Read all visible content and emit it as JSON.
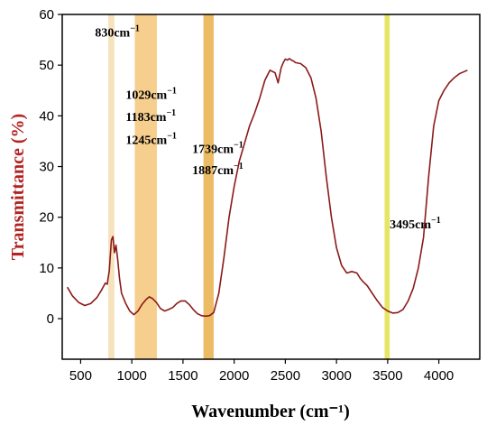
{
  "chart_data": {
    "type": "line",
    "xlabel": "Wavenumber (cm⁻¹)",
    "ylabel": "Transmittance (%)",
    "xlim": [
      320,
      4400
    ],
    "ylim": [
      -8,
      60
    ],
    "xticks": [
      500,
      1000,
      1500,
      2000,
      2500,
      3000,
      3500,
      4000
    ],
    "yticks": [
      0,
      10,
      20,
      30,
      40,
      50,
      60
    ],
    "grid": false,
    "colors": {
      "line": "#8B1A1A",
      "ylabel": "#B22222",
      "xlabel": "#000000",
      "band_light": "#F5DEB3",
      "band_orange": "#F5C77A",
      "band_dark": "#E8B04A",
      "band_yellow": "#E3E04A"
    },
    "bands": [
      {
        "x0": 770,
        "x1": 830,
        "color": "#F5DEB3"
      },
      {
        "x0": 1029,
        "x1": 1245,
        "color": "#F5C77A"
      },
      {
        "x0": 1700,
        "x1": 1800,
        "color": "#E8B04A"
      },
      {
        "x0": 3470,
        "x1": 3520,
        "color": "#E3E04A"
      }
    ],
    "annotations": [
      {
        "base": "830cm",
        "sup": "−1",
        "x": 640,
        "y": 55.6
      },
      {
        "base": "1029cm",
        "sup": "−1",
        "x": 940,
        "y": 43.4
      },
      {
        "base": "1183cm",
        "sup": "−1",
        "x": 940,
        "y": 39.0
      },
      {
        "base": "1245cm",
        "sup": "−1",
        "x": 940,
        "y": 34.5
      },
      {
        "base": "1739cm",
        "sup": "−1",
        "x": 1590,
        "y": 32.7
      },
      {
        "base": "1887cm",
        "sup": "−1",
        "x": 1590,
        "y": 28.5
      },
      {
        "base": "3495cm",
        "sup": "−1",
        "x": 3520,
        "y": 17.8
      }
    ],
    "series": [
      {
        "x": [
          370,
          420,
          480,
          540,
          600,
          660,
          700,
          740,
          760,
          780,
          800,
          815,
          830,
          845,
          860,
          880,
          900,
          940,
          980,
          1020,
          1060,
          1100,
          1140,
          1170,
          1200,
          1240,
          1280,
          1320,
          1360,
          1400,
          1440,
          1480,
          1520,
          1560,
          1600,
          1640,
          1680,
          1720,
          1760,
          1800,
          1850,
          1900,
          1950,
          2000,
          2050,
          2100,
          2150,
          2200,
          2250,
          2300,
          2350,
          2400,
          2430,
          2460,
          2480,
          2500,
          2520,
          2540,
          2560,
          2580,
          2600,
          2650,
          2700,
          2750,
          2800,
          2850,
          2900,
          2950,
          3000,
          3050,
          3100,
          3150,
          3200,
          3230,
          3260,
          3300,
          3350,
          3400,
          3450,
          3500,
          3550,
          3600,
          3650,
          3700,
          3750,
          3800,
          3850,
          3900,
          3950,
          4000,
          4050,
          4100,
          4150,
          4200,
          4280
        ],
        "y": [
          6.2,
          4.5,
          3.2,
          2.6,
          3.0,
          4.2,
          5.5,
          7.0,
          6.8,
          9.5,
          15.5,
          16.2,
          13.0,
          14.5,
          12.0,
          8.0,
          5.0,
          3.0,
          1.5,
          0.8,
          1.5,
          2.8,
          3.8,
          4.3,
          4.0,
          3.2,
          2.0,
          1.5,
          1.8,
          2.2,
          3.0,
          3.5,
          3.5,
          2.8,
          1.8,
          1.0,
          0.6,
          0.5,
          0.6,
          1.2,
          5.0,
          12.0,
          20.0,
          26.0,
          31.0,
          34.5,
          38.0,
          40.5,
          43.5,
          47.0,
          49.0,
          48.5,
          46.5,
          49.5,
          50.5,
          51.2,
          51.0,
          51.3,
          51.0,
          50.8,
          50.5,
          50.3,
          49.5,
          47.5,
          43.5,
          37.0,
          28.0,
          20.0,
          14.0,
          10.5,
          9.0,
          9.3,
          9.0,
          8.0,
          7.3,
          6.5,
          5.0,
          3.5,
          2.2,
          1.5,
          1.1,
          1.2,
          1.8,
          3.5,
          6.0,
          10.0,
          16.0,
          28.0,
          38.0,
          43.0,
          45.0,
          46.5,
          47.5,
          48.3,
          49.0
        ]
      }
    ]
  }
}
